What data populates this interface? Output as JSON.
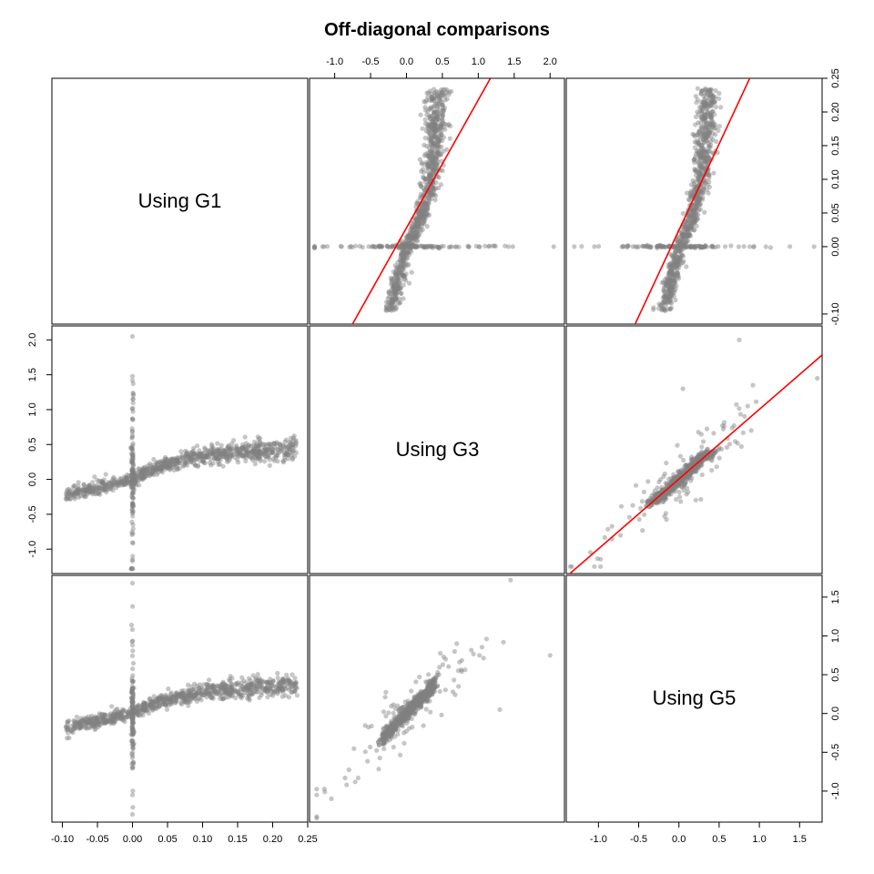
{
  "chart_data": {
    "type": "scatter",
    "title": "Off-diagonal comparisons",
    "variables": [
      "Using G1",
      "Using G3",
      "Using G5"
    ],
    "ranges": {
      "G1": [
        -0.115,
        0.25
      ],
      "G3": [
        -1.35,
        2.2
      ],
      "G5": [
        -1.4,
        1.78
      ]
    },
    "ticks": {
      "G1_x": [
        "-0.10",
        "-0.05",
        "0.00",
        "0.05",
        "0.10",
        "0.15",
        "0.20",
        "0.25"
      ],
      "G1_y": [
        "-0.10",
        "0.00",
        "0.05",
        "0.10",
        "0.15",
        "0.20",
        "0.25"
      ],
      "G3": [
        "-1.0",
        "-0.5",
        "0.0",
        "0.5",
        "1.0",
        "1.5",
        "2.0"
      ],
      "G5": [
        "-1.0",
        "-0.5",
        "0.0",
        "0.5",
        "1.0",
        "1.5"
      ]
    },
    "point_color": "#808080",
    "fit_line_color": "#ff0000",
    "panels": [
      {
        "row": 1,
        "col": 2,
        "x": "G3",
        "y": "G1",
        "fit_line": true
      },
      {
        "row": 1,
        "col": 3,
        "x": "G5",
        "y": "G1",
        "fit_line": true
      },
      {
        "row": 2,
        "col": 1,
        "x": "G1",
        "y": "G3",
        "fit_line": false
      },
      {
        "row": 2,
        "col": 3,
        "x": "G5",
        "y": "G3",
        "fit_line": true
      },
      {
        "row": 3,
        "col": 1,
        "x": "G1",
        "y": "G5",
        "fit_line": false
      },
      {
        "row": 3,
        "col": 2,
        "x": "G3",
        "y": "G5",
        "fit_line": false
      }
    ],
    "grid": false,
    "legend": "none"
  }
}
